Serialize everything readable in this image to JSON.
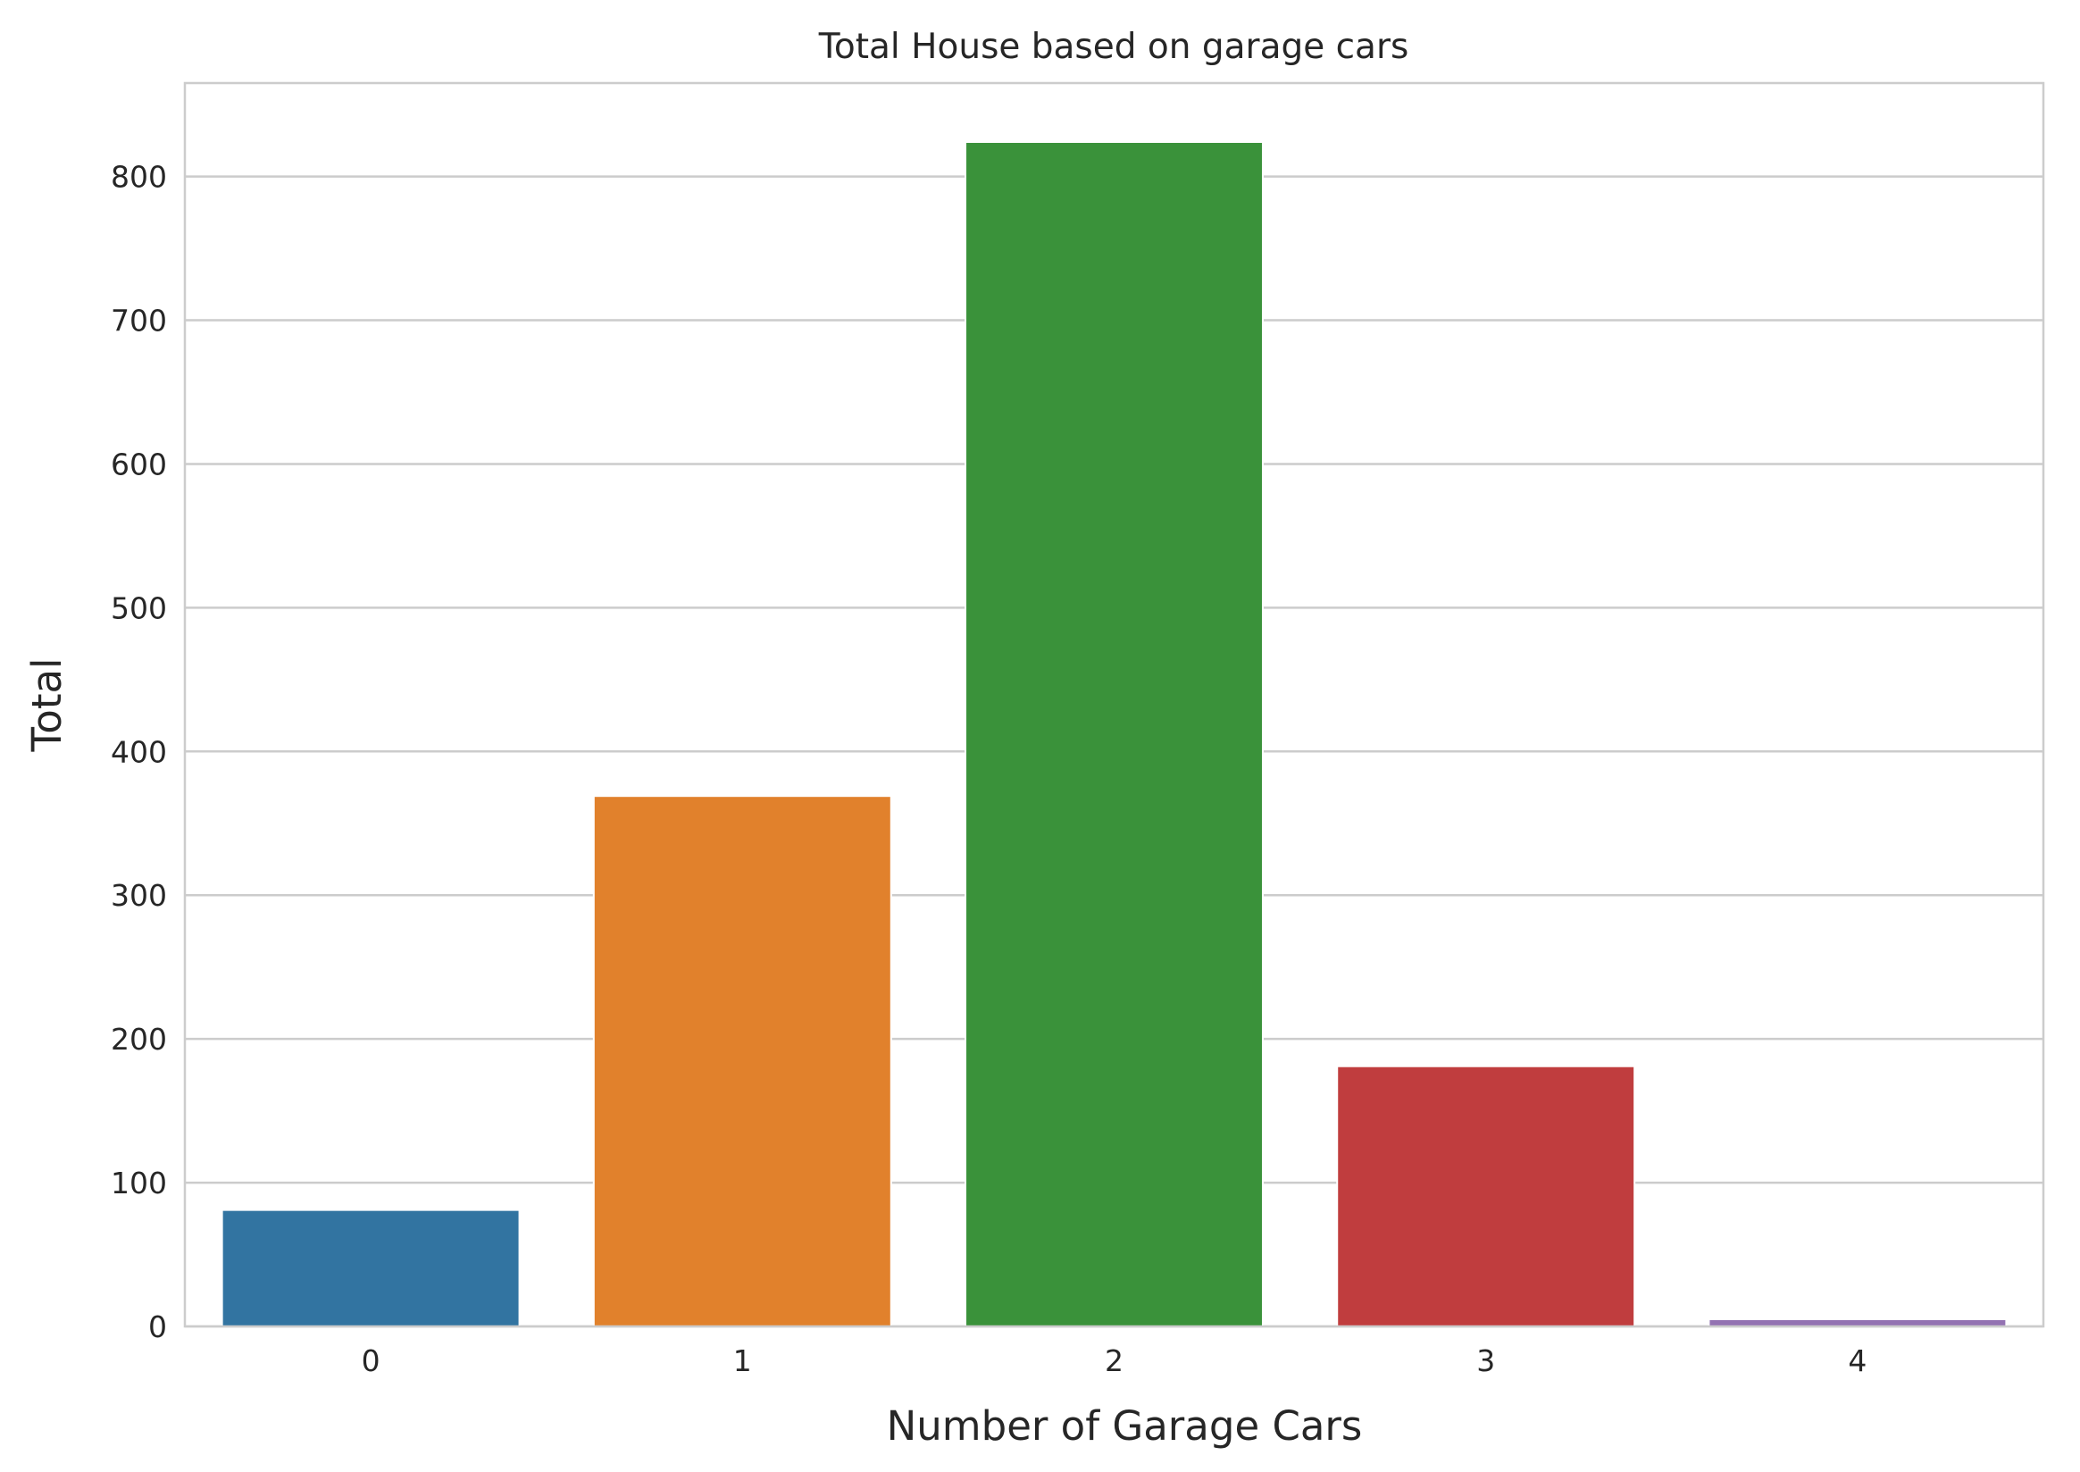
{
  "chart_data": {
    "type": "bar",
    "title": "Total House based on garage cars",
    "xlabel": "Number of Garage Cars",
    "ylabel": "Total",
    "categories": [
      "0",
      "1",
      "2",
      "3",
      "4"
    ],
    "values": [
      81,
      369,
      824,
      181,
      5
    ],
    "colors": [
      "#3274a1",
      "#e1812c",
      "#3a923a",
      "#c03d3e",
      "#9372b2"
    ],
    "ylim": [
      0,
      865
    ],
    "yticks": [
      0,
      100,
      200,
      300,
      400,
      500,
      600,
      700,
      800
    ],
    "grid": true,
    "legend": "none"
  }
}
